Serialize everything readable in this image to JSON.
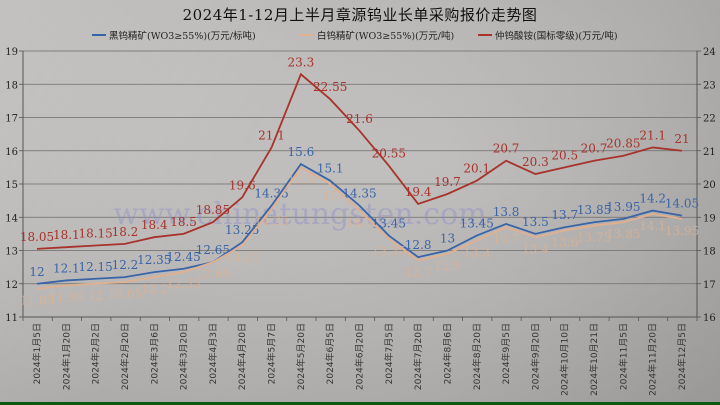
{
  "title": "2024年1-12月上半月章源钨业长单采购报价走势图",
  "legend": [
    {
      "label": "黑钨精矿(WO3≥55%)(万元/标吨)",
      "color": "#3a64a8"
    },
    {
      "label": "白钨精矿(WO3≥55%)(万元/吨)",
      "color": "#e0b090"
    },
    {
      "label": "仲钨酸铵(国标零级)(万元/吨)",
      "color": "#a8322c"
    }
  ],
  "watermark": "www.chinatungsten.com",
  "chart_data": {
    "type": "line",
    "title": "2024年1-12月上半月章源钨业长单采购报价走势图",
    "xlabel": "",
    "ylabel_left": "",
    "ylabel_right": "",
    "ylim_left": [
      11,
      19
    ],
    "ylim_right": [
      16,
      24
    ],
    "yticks_left": [
      11,
      12,
      13,
      14,
      15,
      16,
      17,
      18,
      19
    ],
    "yticks_right": [
      16,
      17,
      18,
      19,
      20,
      21,
      22,
      23,
      24
    ],
    "grid": true,
    "legend_position": "top",
    "categories": [
      "2024年1月5日",
      "2024年1月20日",
      "2024年2月2日",
      "2024年2月20日",
      "2024年3月6日",
      "2024年3月20日",
      "2024年4月3日",
      "2024年4月20日",
      "2024年5月7日",
      "2024年5月20日",
      "2024年6月5日",
      "2024年6月20日",
      "2024年7月5日",
      "2024年7月20日",
      "2024年8月6日",
      "2024年8月20日",
      "2024年9月5日",
      "2024年9月20日",
      "2024年10月10日",
      "2024年10月21日",
      "2024年11月5日",
      "2024年11月20日",
      "2024年12月5日"
    ],
    "series": [
      {
        "name": "黑钨精矿(WO3≥55%)(万元/标吨)",
        "axis": "left",
        "color": "#3a64a8",
        "values": [
          12,
          12.1,
          12.15,
          12.2,
          12.35,
          12.45,
          12.65,
          13.25,
          14.35,
          15.6,
          15.1,
          14.35,
          13.45,
          12.8,
          13,
          13.45,
          13.8,
          13.5,
          13.7,
          13.85,
          13.95,
          14.2,
          14.05
        ]
      },
      {
        "name": "白钨精矿(WO3≥55%)(万元/吨)",
        "axis": "left",
        "color": "#e0b090",
        "values": [
          11.85,
          11.95,
          12,
          12.05,
          12.2,
          12.35,
          12.65,
          13.15,
          14.25,
          15.5,
          15,
          14.2,
          13.35,
          12.7,
          12.9,
          13.3,
          13.7,
          13.4,
          13.6,
          13.75,
          13.85,
          14.1,
          13.95
        ]
      },
      {
        "name": "仲钨酸铵(国标零级)(万元/吨)",
        "axis": "right",
        "color": "#a8322c",
        "values": [
          18.05,
          18.1,
          18.15,
          18.2,
          18.4,
          18.5,
          18.85,
          19.6,
          21.1,
          23.3,
          22.55,
          21.6,
          20.55,
          19.4,
          19.7,
          20.1,
          20.7,
          20.3,
          20.5,
          20.7,
          20.85,
          21.1,
          21
        ]
      }
    ]
  }
}
